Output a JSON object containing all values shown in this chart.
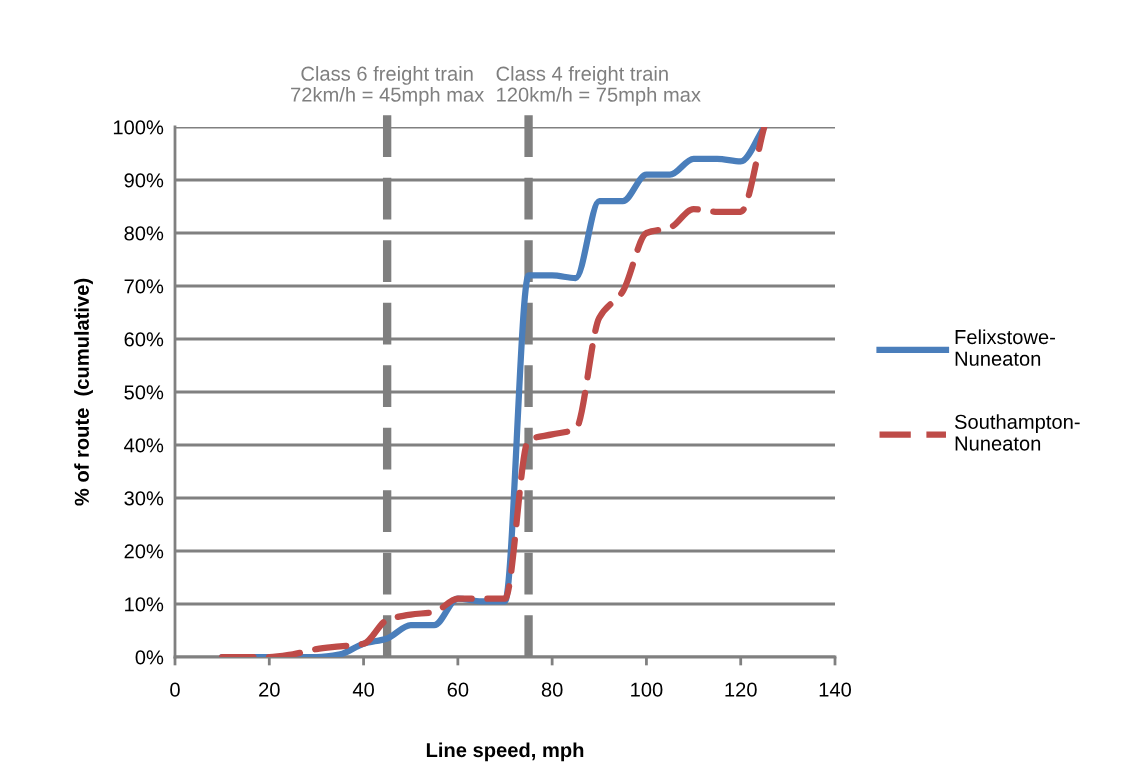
{
  "chart_data": {
    "type": "line",
    "xlabel": "Line speed, mph",
    "ylabel": "% of route  (cumulative)",
    "xlim": [
      0,
      140
    ],
    "xticks": [
      0,
      20,
      40,
      60,
      80,
      100,
      120,
      140
    ],
    "ylim": [
      0,
      100
    ],
    "yticks": [
      {
        "value": 0,
        "label": "0%"
      },
      {
        "value": 10,
        "label": "10%"
      },
      {
        "value": 20,
        "label": "20%"
      },
      {
        "value": 30,
        "label": "30%"
      },
      {
        "value": 40,
        "label": "40%"
      },
      {
        "value": 50,
        "label": "50%"
      },
      {
        "value": 60,
        "label": "60%"
      },
      {
        "value": 70,
        "label": "70%"
      },
      {
        "value": 80,
        "label": "80%"
      },
      {
        "value": 90,
        "label": "90%"
      },
      {
        "value": 100,
        "label": "100%"
      }
    ],
    "grid": "y",
    "legend": "right",
    "marker": "none",
    "series": [
      {
        "name": "Felixstowe-\nNuneaton",
        "color": "#4a7ebb",
        "line_style": "solid",
        "x": [
          10,
          20,
          30,
          35,
          40,
          45,
          50,
          55,
          60,
          65,
          70,
          75,
          80,
          85,
          90,
          95,
          100,
          105,
          110,
          115,
          120,
          125
        ],
        "values": [
          0,
          0,
          0,
          0.5,
          2.5,
          3.5,
          6,
          6,
          11,
          10.5,
          10.5,
          72,
          72,
          71.5,
          86,
          86,
          91,
          91,
          94,
          94,
          93.5,
          100
        ]
      },
      {
        "name": "Southampton-\nNuneaton",
        "color": "#be4b48",
        "line_style": "dashed",
        "x": [
          10,
          20,
          25,
          30,
          35,
          40,
          45,
          50,
          55,
          60,
          65,
          70,
          75,
          80,
          85,
          90,
          95,
          100,
          105,
          110,
          115,
          120,
          125
        ],
        "values": [
          0,
          0,
          0.5,
          1.5,
          2,
          2.5,
          7,
          8,
          8.5,
          11,
          11,
          11,
          41,
          42,
          43,
          64,
          69,
          80,
          81,
          84.5,
          84,
          84,
          100
        ]
      }
    ],
    "ref_lines": [
      {
        "axis": "x",
        "value": 45,
        "label": "Class 6 freight train\n72km/h = 45mph max",
        "color": "#7f7f7f",
        "line_style": "dashed"
      },
      {
        "axis": "x",
        "value": 75,
        "label": "Class 4 freight train\n120km/h = 75mph max",
        "color": "#7f7f7f",
        "line_style": "dashed"
      }
    ]
  }
}
